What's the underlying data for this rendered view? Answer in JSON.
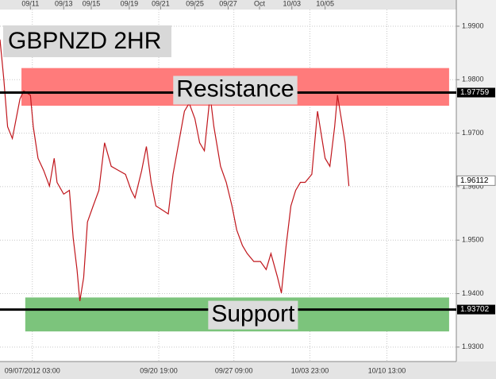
{
  "chart_data": {
    "type": "line",
    "title": "GBPNZD 2HR",
    "x": [
      0,
      4,
      8,
      13,
      17,
      21,
      25,
      32,
      35,
      40,
      46,
      52,
      57,
      60,
      67,
      73,
      77,
      81,
      84,
      88,
      92,
      98,
      104,
      110,
      117,
      125,
      132,
      138,
      142,
      149,
      154,
      159,
      164,
      171,
      177,
      182,
      188,
      194,
      199,
      205,
      210,
      215,
      221,
      225,
      232,
      238,
      244,
      249,
      255,
      260,
      267,
      274,
      280,
      285,
      292,
      296,
      301,
      306,
      311,
      316,
      321,
      328,
      334,
      338,
      342,
      347,
      352,
      355,
      359,
      363,
      367
    ],
    "values": [
      1.9875,
      1.9801,
      1.9712,
      1.969,
      1.9727,
      1.9764,
      1.9779,
      1.9771,
      1.9712,
      1.9653,
      1.963,
      1.9601,
      1.9653,
      1.9608,
      1.9586,
      1.9593,
      1.9504,
      1.9445,
      1.9386,
      1.943,
      1.9534,
      1.9564,
      1.9593,
      1.9682,
      1.9638,
      1.963,
      1.9623,
      1.9593,
      1.9579,
      1.963,
      1.9675,
      1.9608,
      1.9564,
      1.9556,
      1.9549,
      1.9623,
      1.9682,
      1.9741,
      1.9756,
      1.9727,
      1.9682,
      1.9667,
      1.9771,
      1.9712,
      1.9638,
      1.9608,
      1.9564,
      1.9519,
      1.949,
      1.9475,
      1.946,
      1.946,
      1.9445,
      1.9475,
      1.943,
      1.9401,
      1.949,
      1.9564,
      1.9593,
      1.9608,
      1.9608,
      1.9623,
      1.9741,
      1.9697,
      1.9653,
      1.9638,
      1.9712,
      1.9771,
      1.9727,
      1.9682,
      1.9601
    ],
    "color": "#c0161c",
    "xlim": [
      0,
      480
    ],
    "ylim": [
      1.9273,
      1.9949
    ],
    "yticks": [
      {
        "value": 1.99,
        "label": "1.9900"
      },
      {
        "value": 1.98,
        "label": "1.9800"
      },
      {
        "value": 1.97,
        "label": "1.9700"
      },
      {
        "value": 1.96,
        "label": "1.9600"
      },
      {
        "value": 1.95,
        "label": "1.9500"
      },
      {
        "value": 1.94,
        "label": "1.9400"
      },
      {
        "value": 1.93,
        "label": "1.9300"
      }
    ],
    "xticks": [
      {
        "value": 34,
        "label": "09/07/2012 03:00"
      },
      {
        "value": 167,
        "label": "09/20 19:00"
      },
      {
        "value": 246,
        "label": "09/27 09:00"
      },
      {
        "value": 326,
        "label": "10/03 23:00"
      },
      {
        "value": 407,
        "label": "10/10 13:00"
      }
    ],
    "top_xticks": [
      {
        "value": 32,
        "label": "09/11"
      },
      {
        "value": 67,
        "label": "09/13"
      },
      {
        "value": 96,
        "label": "09/15"
      },
      {
        "value": 136,
        "label": "09/19"
      },
      {
        "value": 169,
        "label": "09/21"
      },
      {
        "value": 205,
        "label": "09/25"
      },
      {
        "value": 240,
        "label": "09/27"
      },
      {
        "value": 273,
        "label": "Oct"
      },
      {
        "value": 307,
        "label": "10/03"
      },
      {
        "value": 342,
        "label": "10/05"
      }
    ],
    "grid": true,
    "levels": [
      {
        "label": "Resistance",
        "value": 1.97759,
        "zone": [
          1.9752,
          1.9821
        ],
        "zone_x": [
          23,
          472
        ],
        "color": "#ff7b7b"
      },
      {
        "label": "Support",
        "value": 1.93702,
        "zone": [
          1.933,
          1.9392
        ],
        "zone_x": [
          27,
          472
        ],
        "color": "#7cc47c"
      }
    ],
    "last_price": 1.96112
  }
}
